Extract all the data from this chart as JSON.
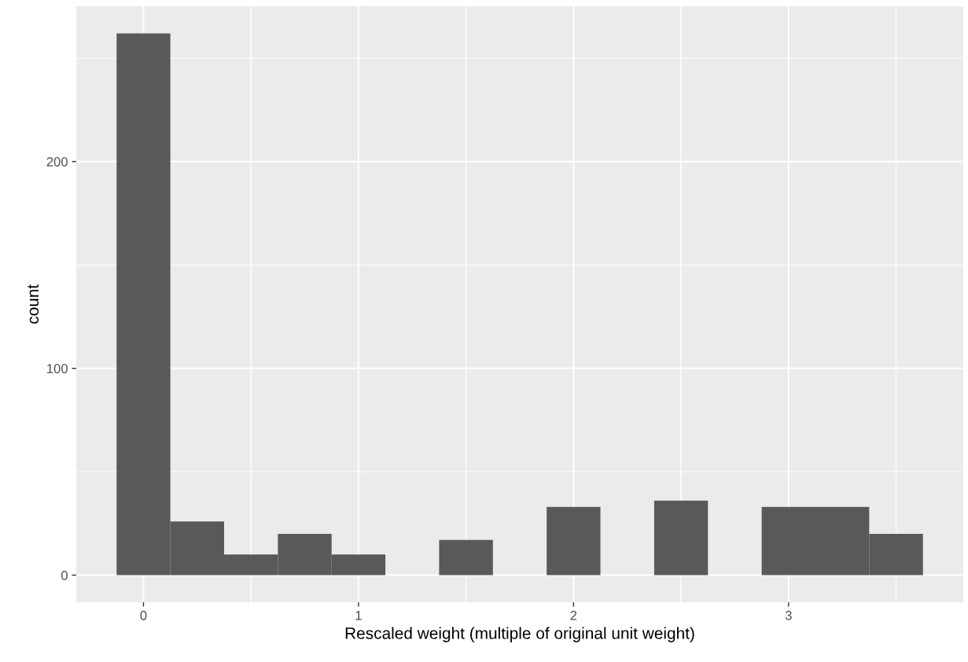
{
  "chart_data": {
    "type": "histogram",
    "xlabel": "Rescaled weight (multiple of original unit weight)",
    "ylabel": "count",
    "bins": [
      -0.125,
      0.125,
      0.375,
      0.625,
      0.875,
      1.125,
      1.375,
      1.625,
      1.875,
      2.125,
      2.375,
      2.625,
      2.875,
      3.125,
      3.375,
      3.625
    ],
    "values": [
      262,
      26,
      10,
      20,
      10,
      0,
      17,
      0,
      33,
      0,
      36,
      0,
      33,
      33,
      20
    ],
    "color": "#595959",
    "xlim": [
      -0.3125,
      3.8125
    ],
    "xticks": [
      0,
      1,
      2,
      3
    ],
    "ylim": [
      -13.1,
      275.1
    ],
    "yticks": [
      0,
      100,
      200
    ],
    "grid": true
  }
}
